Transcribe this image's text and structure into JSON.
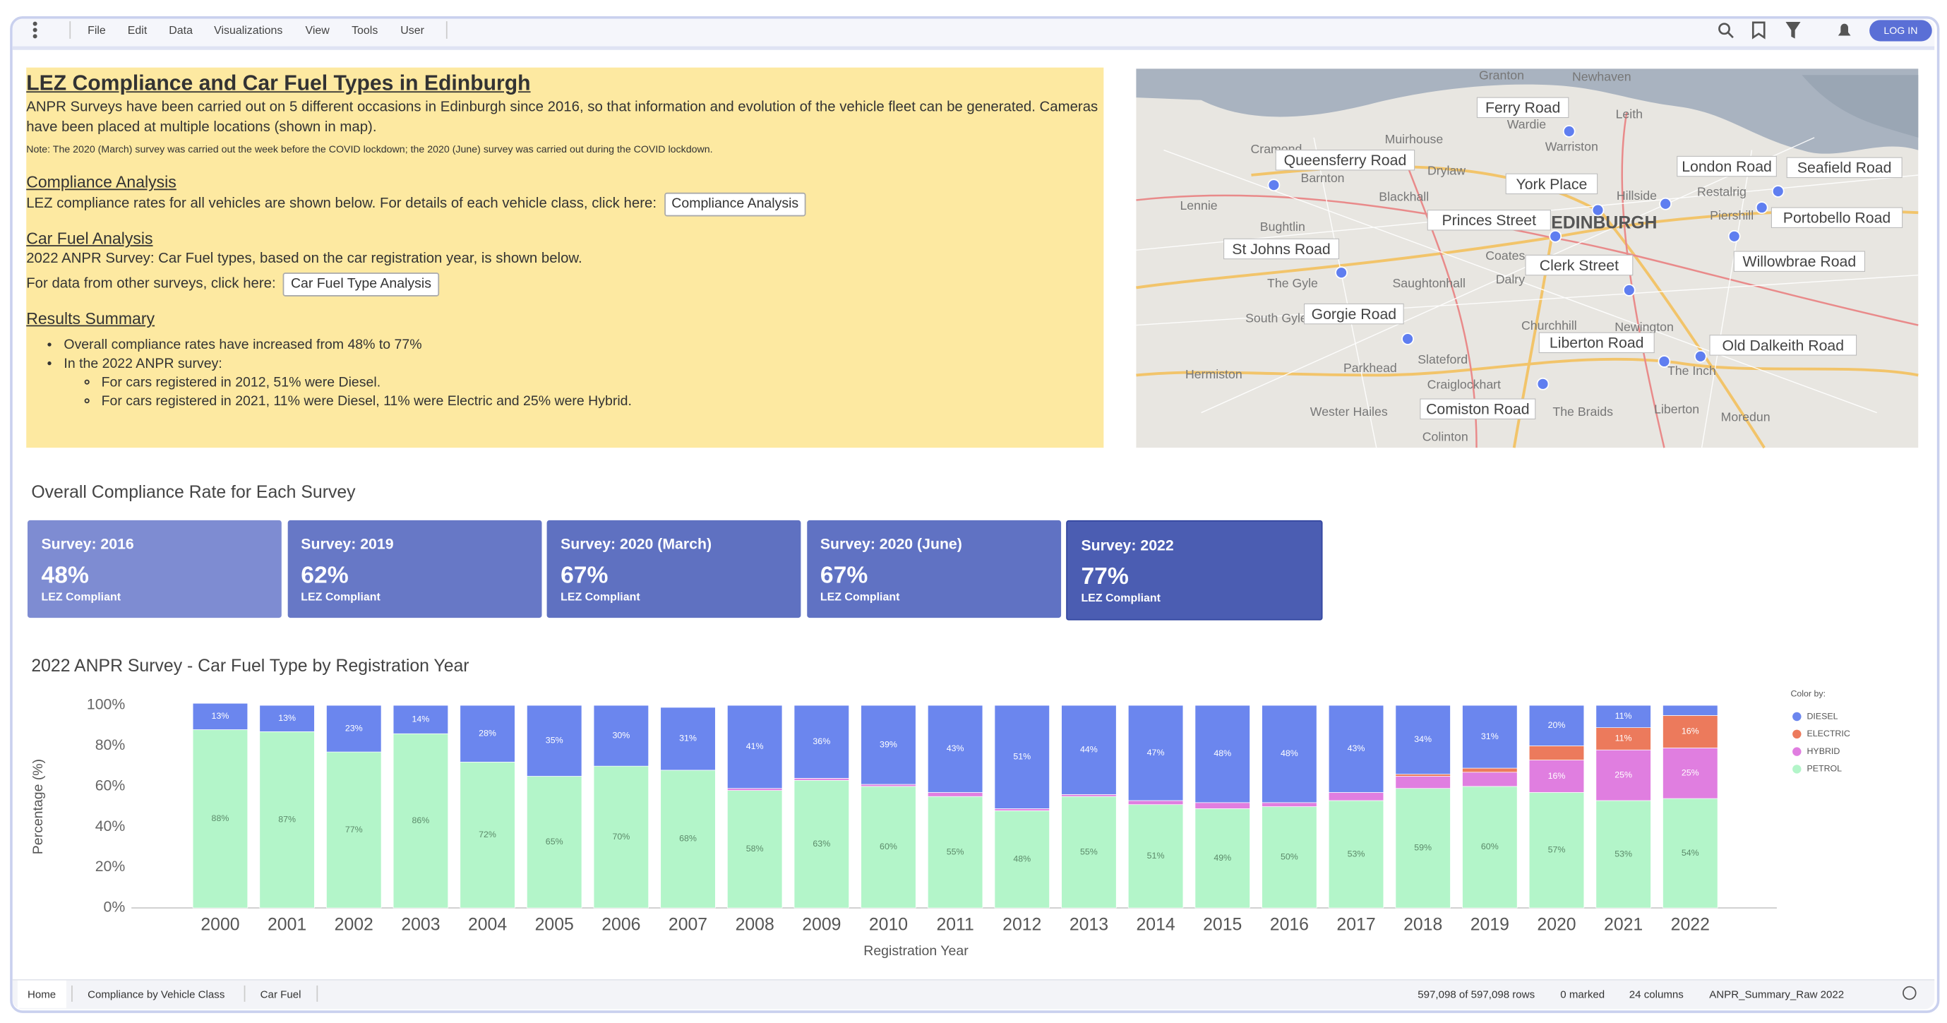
{
  "toolbar": {
    "menu": [
      "File",
      "Edit",
      "Data",
      "Visualizations",
      "View",
      "Tools",
      "User"
    ],
    "login": "LOG IN"
  },
  "intro": {
    "title": "LEZ Compliance and Car Fuel Types in Edinburgh",
    "paragraph": "ANPR Surveys have been carried out on 5 different occasions in Edinburgh since 2016, so that information and evolution of the vehicle fleet can be generated. Cameras have been placed at multiple locations (shown in map).",
    "note": "Note: The 2020 (March) survey was carried out the week before the COVID lockdown; the 2020 (June) survey was carried out during the COVID lockdown.",
    "compliance_heading": "Compliance Analysis",
    "compliance_text": "LEZ compliance rates for all vehicles are shown below. For details of each vehicle class, click here:",
    "compliance_button": "Compliance Analysis",
    "fuel_heading": "Car Fuel Analysis",
    "fuel_text": "2022 ANPR Survey: Car Fuel types, based on the car registration year, is shown below.",
    "fuel_text2": "For data from other surveys, click here:",
    "fuel_button": "Car Fuel Type Analysis",
    "summary_heading": "Results Summary",
    "summary": [
      "Overall compliance rates have increased from 48% to 77%",
      "In the 2022 ANPR survey:"
    ],
    "summary_sub": [
      "For cars registered in 2012, 51% were Diesel.",
      "For cars registered in 2021, 11% were Diesel, 11% were Electric and 25% were Hybrid."
    ]
  },
  "map": {
    "locations": [
      "Ferry Road",
      "Queensferry Road",
      "York Place",
      "London Road",
      "Seafield Road",
      "Princes Street",
      "Portobello Road",
      "St Johns Road",
      "Clerk Street",
      "Willowbrae Road",
      "Gorgie Road",
      "Liberton Road",
      "Old Dalkeith Road",
      "Comiston Road"
    ],
    "places": [
      "Granton",
      "Newhaven",
      "Wardie",
      "Leith",
      "Muirhouse",
      "Warriston",
      "Cramond",
      "Barnton",
      "Drylaw",
      "Blackhall",
      "Lennie",
      "Hillside",
      "Restalrig",
      "Piershill",
      "EDINBURGH",
      "Bughtlin",
      "Coates",
      "The Gyle",
      "Saughtonhall",
      "Dalry",
      "South Gyle",
      "Churchhill",
      "Newington",
      "Hermiston",
      "Parkhead",
      "Slateford",
      "Craiglockhart",
      "Wester Hailes",
      "The Braids",
      "Liberton",
      "Moredun",
      "Colinton",
      "The Inch"
    ]
  },
  "kpi": {
    "title": "Overall Compliance Rate for Each Survey",
    "cards": [
      {
        "title": "Survey: 2016",
        "value": "48%",
        "caption": "LEZ Compliant"
      },
      {
        "title": "Survey: 2019",
        "value": "62%",
        "caption": "LEZ Compliant"
      },
      {
        "title": "Survey: 2020 (March)",
        "value": "67%",
        "caption": "LEZ Compliant"
      },
      {
        "title": "Survey: 2020 (June)",
        "value": "67%",
        "caption": "LEZ Compliant"
      },
      {
        "title": "Survey: 2022",
        "value": "77%",
        "caption": "LEZ Compliant"
      }
    ]
  },
  "chart_data": {
    "type": "bar",
    "stacked": true,
    "title": "2022 ANPR Survey - Car Fuel Type by Registration Year",
    "x_label": "Registration Year",
    "y_label": "Percentage (%)",
    "categories": [
      "2000",
      "2001",
      "2002",
      "2003",
      "2004",
      "2005",
      "2006",
      "2007",
      "2008",
      "2009",
      "2010",
      "2011",
      "2012",
      "2013",
      "2014",
      "2015",
      "2016",
      "2017",
      "2018",
      "2019",
      "2020",
      "2021",
      "2022"
    ],
    "series": [
      {
        "name": "DIESEL",
        "color": "#6b86ee",
        "values": [
          13,
          13,
          23,
          14,
          28,
          35,
          30,
          31,
          41,
          36,
          39,
          43,
          51,
          44,
          47,
          48,
          48,
          43,
          34,
          31,
          20,
          11,
          5
        ],
        "value_labels": [
          "13%",
          "13%",
          "23%",
          "14%",
          "28%",
          "35%",
          "30%",
          "31%",
          "41%",
          "36%",
          "39%",
          "43%",
          "51%",
          "44%",
          "47%",
          "48%",
          "48%",
          "43%",
          "34%",
          "31%",
          "20%",
          "11%",
          null
        ]
      },
      {
        "name": "ELECTRIC",
        "color": "#ec7a5c",
        "values": [
          0,
          0,
          0,
          0,
          0,
          0,
          0,
          0,
          0,
          0,
          0,
          0,
          0,
          0,
          0,
          0,
          0,
          0,
          1,
          2,
          7,
          11,
          16
        ],
        "value_labels": [
          null,
          null,
          null,
          null,
          null,
          null,
          null,
          null,
          null,
          null,
          null,
          null,
          null,
          null,
          null,
          null,
          null,
          null,
          null,
          null,
          null,
          "11%",
          "16%"
        ]
      },
      {
        "name": "HYBRID",
        "color": "#e07ee0",
        "values": [
          0,
          0,
          0,
          0,
          0,
          0,
          0,
          0,
          1,
          1,
          1,
          2,
          1,
          1,
          2,
          3,
          2,
          4,
          6,
          7,
          16,
          25,
          25
        ],
        "value_labels": [
          null,
          null,
          null,
          null,
          null,
          null,
          null,
          null,
          null,
          null,
          null,
          null,
          null,
          null,
          null,
          null,
          null,
          null,
          null,
          null,
          "16%",
          "25%",
          "25%"
        ]
      },
      {
        "name": "PETROL",
        "color": "#b3f5c9",
        "values": [
          88,
          87,
          77,
          86,
          72,
          65,
          70,
          68,
          58,
          63,
          60,
          55,
          48,
          55,
          51,
          49,
          50,
          53,
          59,
          60,
          57,
          53,
          54
        ],
        "value_labels": [
          "88%",
          "87%",
          "77%",
          "86%",
          "72%",
          "65%",
          "70%",
          "68%",
          "58%",
          "63%",
          "60%",
          "55%",
          "48%",
          "55%",
          "51%",
          "49%",
          "50%",
          "53%",
          "59%",
          "60%",
          "57%",
          "53%",
          "54%"
        ]
      }
    ],
    "ylim": [
      0,
      100
    ],
    "yticks": [
      {
        "value": 0,
        "label": "0%"
      },
      {
        "value": 20,
        "label": "20%"
      },
      {
        "value": 40,
        "label": "40%"
      },
      {
        "value": 60,
        "label": "60%"
      },
      {
        "value": 80,
        "label": "80%"
      },
      {
        "value": 100,
        "label": "100%"
      }
    ],
    "grid": false,
    "legend_title": "Color by:",
    "legend": "right"
  },
  "footer": {
    "tabs": [
      "Home",
      "Compliance by Vehicle Class",
      "Car Fuel"
    ],
    "status": [
      "597,098 of 597,098 rows",
      "0 marked",
      "24 columns",
      "ANPR_Summary_Raw 2022"
    ]
  }
}
